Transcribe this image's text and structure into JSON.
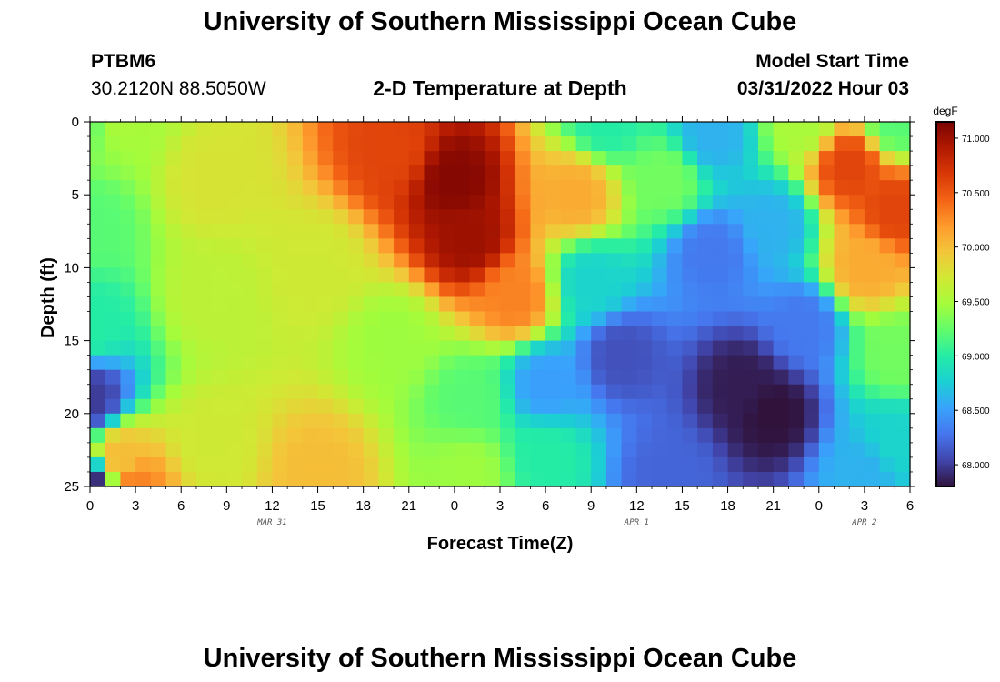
{
  "header": {
    "main_title": "University of Southern Mississippi Ocean Cube",
    "station_id": "PTBM6",
    "station_coords": "30.2120N  88.5050W",
    "chart_title": "2-D Temperature at Depth",
    "model_start_label": "Model Start Time",
    "model_start_value": "03/31/2022 Hour 03"
  },
  "footer": {
    "repeated_title": "University of Southern Mississippi Ocean Cube"
  },
  "chart_data": {
    "type": "heatmap",
    "title": "2-D Temperature at Depth",
    "xlabel": "Forecast Time(Z)",
    "ylabel": "Depth (ft)",
    "x_tick_labels": [
      "0",
      "3",
      "6",
      "9",
      "12",
      "15",
      "18",
      "21",
      "0",
      "3",
      "6",
      "9",
      "12",
      "15",
      "18",
      "21",
      "0",
      "3",
      "6"
    ],
    "x_range_hours": [
      0,
      54
    ],
    "date_labels": [
      {
        "label": "MAR 31",
        "hour": 12
      },
      {
        "label": "APR 1",
        "hour": 36
      },
      {
        "label": "APR 2",
        "hour": 51
      }
    ],
    "y_tick_labels": [
      "0",
      "5",
      "10",
      "15",
      "20",
      "25"
    ],
    "y_range": [
      0,
      25
    ],
    "colorbar": {
      "unit": "degF",
      "min": 67.8,
      "max": 71.15,
      "ticks": [
        "68.000",
        "68.500",
        "69.000",
        "69.500",
        "70.000",
        "70.500",
        "71.000"
      ],
      "tick_values": [
        68.0,
        68.5,
        69.0,
        69.5,
        70.0,
        70.5,
        71.0
      ],
      "palette": [
        "#30123b",
        "#4145ab",
        "#4675ed",
        "#39a2fc",
        "#1bcfd4",
        "#24eca6",
        "#61fc6c",
        "#a4fc3b",
        "#d1e834",
        "#f3c63a",
        "#fe9b2d",
        "#f36315",
        "#d93806",
        "#b11901",
        "#7a0402"
      ]
    },
    "grid": {
      "cols": 54,
      "rows": 25,
      "x_step_hours": 1,
      "depth_step_ft": 1
    },
    "temperature_anchors_degF": [
      {
        "hour": 0,
        "depth_ft": 0,
        "value": 69.3
      },
      {
        "hour": 0,
        "depth_ft": 7,
        "value": 69.2
      },
      {
        "hour": 0,
        "depth_ft": 14,
        "value": 69.0
      },
      {
        "hour": 0,
        "depth_ft": 19,
        "value": 68.0
      },
      {
        "hour": 0,
        "depth_ft": 25,
        "value": 67.9
      },
      {
        "hour": 2,
        "depth_ft": 0,
        "value": 69.5
      },
      {
        "hour": 2,
        "depth_ft": 23,
        "value": 70.0
      },
      {
        "hour": 3,
        "depth_ft": 25,
        "value": 70.3
      },
      {
        "hour": 8,
        "depth_ft": 4,
        "value": 69.75
      },
      {
        "hour": 8,
        "depth_ft": 12,
        "value": 69.6
      },
      {
        "hour": 8,
        "depth_ft": 22,
        "value": 69.7
      },
      {
        "hour": 15,
        "depth_ft": 10,
        "value": 69.7
      },
      {
        "hour": 15,
        "depth_ft": 24,
        "value": 70.0
      },
      {
        "hour": 20,
        "depth_ft": 2,
        "value": 70.6
      },
      {
        "hour": 20,
        "depth_ft": 15,
        "value": 69.45
      },
      {
        "hour": 24,
        "depth_ft": 4,
        "value": 71.1
      },
      {
        "hour": 25,
        "depth_ft": 8,
        "value": 71.0
      },
      {
        "hour": 25,
        "depth_ft": 19,
        "value": 69.2
      },
      {
        "hour": 25,
        "depth_ft": 24,
        "value": 69.45
      },
      {
        "hour": 28,
        "depth_ft": 12,
        "value": 70.3
      },
      {
        "hour": 30,
        "depth_ft": 18,
        "value": 68.5
      },
      {
        "hour": 30,
        "depth_ft": 23,
        "value": 69.0
      },
      {
        "hour": 32,
        "depth_ft": 5,
        "value": 70.1
      },
      {
        "hour": 33,
        "depth_ft": 11,
        "value": 68.8
      },
      {
        "hour": 34,
        "depth_ft": 0,
        "value": 69.0
      },
      {
        "hour": 35,
        "depth_ft": 16,
        "value": 68.1
      },
      {
        "hour": 38,
        "depth_ft": 4,
        "value": 69.3
      },
      {
        "hour": 38,
        "depth_ft": 24,
        "value": 68.2
      },
      {
        "hour": 41,
        "depth_ft": 1,
        "value": 68.6
      },
      {
        "hour": 41,
        "depth_ft": 9,
        "value": 68.3
      },
      {
        "hour": 43,
        "depth_ft": 18,
        "value": 67.85
      },
      {
        "hour": 45,
        "depth_ft": 20,
        "value": 67.8
      },
      {
        "hour": 45,
        "depth_ft": 7,
        "value": 68.6
      },
      {
        "hour": 47,
        "depth_ft": 0,
        "value": 69.5
      },
      {
        "hour": 47,
        "depth_ft": 14,
        "value": 68.3
      },
      {
        "hour": 50,
        "depth_ft": 3,
        "value": 70.6
      },
      {
        "hour": 51,
        "depth_ft": 10,
        "value": 70.1
      },
      {
        "hour": 53,
        "depth_ft": 6,
        "value": 70.6
      },
      {
        "hour": 53,
        "depth_ft": 0,
        "value": 69.2
      },
      {
        "hour": 53,
        "depth_ft": 16,
        "value": 69.3
      },
      {
        "hour": 53,
        "depth_ft": 22,
        "value": 68.8
      },
      {
        "hour": 51,
        "depth_ft": 24,
        "value": 68.6
      }
    ]
  }
}
